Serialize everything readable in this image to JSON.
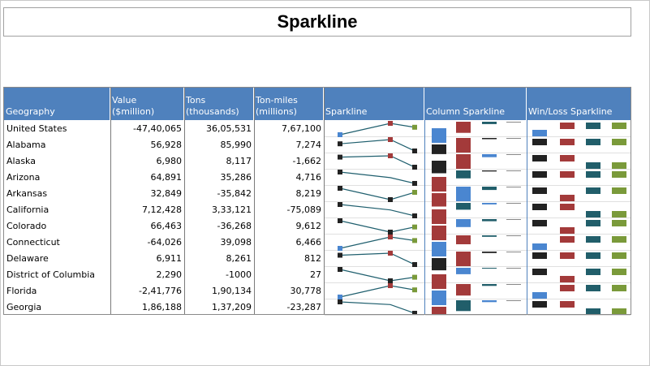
{
  "title": "Sparkline",
  "columns": {
    "geography": "Geography",
    "value": [
      "Value",
      "($million)"
    ],
    "tons": [
      "Tons",
      "(thousands)"
    ],
    "tonmiles": [
      "Ton-miles",
      "(millions)"
    ],
    "sparkline": "Sparkline",
    "column_sparkline": "Column Sparkline",
    "winloss_sparkline": "Win/Loss Sparkline"
  },
  "colors": {
    "header": "#4f81bd",
    "line": "#1f5f6e",
    "first": "#a33a3a",
    "last": "#7a9a3a",
    "high": "#a33a3a",
    "low": "#222222",
    "negative": "#4a86d0",
    "teal": "#215e6a"
  },
  "rows": [
    {
      "geo": "United States",
      "value": "-47,40,065",
      "tons": "36,05,531",
      "tonmiles": "7,67,100",
      "v": [
        -4740065,
        3605531,
        767100
      ]
    },
    {
      "geo": "Alabama",
      "value": "56,928",
      "tons": "85,990",
      "tonmiles": "7,274",
      "v": [
        56928,
        85990,
        7274
      ]
    },
    {
      "geo": "Alaska",
      "value": "6,980",
      "tons": "8,117",
      "tonmiles": "-1,662",
      "v": [
        6980,
        8117,
        -1662
      ]
    },
    {
      "geo": "Arizona",
      "value": "64,891",
      "tons": "35,286",
      "tonmiles": "4,716",
      "v": [
        64891,
        35286,
        4716
      ]
    },
    {
      "geo": "Arkansas",
      "value": "32,849",
      "tons": "-35,842",
      "tonmiles": "8,219",
      "v": [
        32849,
        -35842,
        8219
      ]
    },
    {
      "geo": "California",
      "value": "7,12,428",
      "tons": "3,33,121",
      "tonmiles": "-75,089",
      "v": [
        712428,
        333121,
        -75089
      ]
    },
    {
      "geo": "Colorado",
      "value": "66,463",
      "tons": "-36,268",
      "tonmiles": "9,612",
      "v": [
        66463,
        -36268,
        9612
      ]
    },
    {
      "geo": "Connecticut",
      "value": "-64,026",
      "tons": "39,098",
      "tonmiles": "6,466",
      "v": [
        -64026,
        39098,
        6466
      ]
    },
    {
      "geo": "Delaware",
      "value": "6,911",
      "tons": "8,261",
      "tonmiles": "812",
      "v": [
        6911,
        8261,
        812
      ]
    },
    {
      "geo": "District of Columbia",
      "value": "2,290",
      "tons": "-1000",
      "tonmiles": "27",
      "v": [
        2290,
        -1000,
        27
      ]
    },
    {
      "geo": "Florida",
      "value": "-2,41,776",
      "tons": "1,90,134",
      "tonmiles": "30,778",
      "v": [
        -241776,
        190134,
        30778
      ]
    },
    {
      "geo": "Georgia",
      "value": "1,86,188",
      "tons": "1,37,209",
      "tonmiles": "-23,287",
      "v": [
        186188,
        137209,
        -23287
      ]
    }
  ]
}
